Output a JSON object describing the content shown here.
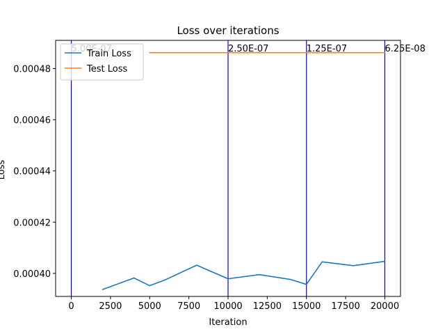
{
  "chart_data": {
    "type": "line",
    "title": "Loss over iterations",
    "xlabel": "Iteration",
    "ylabel": "Loss",
    "xlim": [
      -1000,
      21000
    ],
    "ylim": [
      0.000391,
      0.000491
    ],
    "x_ticks": [
      0,
      2500,
      5000,
      7500,
      10000,
      12500,
      15000,
      17500,
      20000
    ],
    "x_tick_labels": [
      "0",
      "2500",
      "5000",
      "7500",
      "10000",
      "12500",
      "15000",
      "17500",
      "20000"
    ],
    "y_ticks": [
      0.0004,
      0.00042,
      0.00044,
      0.00046,
      0.00048
    ],
    "y_tick_labels": [
      "0.00040",
      "0.00042",
      "0.00044",
      "0.00046",
      "0.00048"
    ],
    "grid": false,
    "legend": "top-left",
    "series": [
      {
        "name": "Train Loss",
        "color": "#1f77b4",
        "x": [
          2000,
          4000,
          5000,
          6000,
          8000,
          10000,
          12000,
          14000,
          15000,
          16000,
          18000,
          20000
        ],
        "y": [
          0.0003937,
          0.0003982,
          0.0003952,
          0.0003975,
          0.0004032,
          0.0003979,
          0.0003995,
          0.0003976,
          0.0003957,
          0.0004045,
          0.000403,
          0.0004047
        ]
      },
      {
        "name": "Test Loss",
        "color": "#ff7f0e",
        "x": [
          5000,
          10000,
          15000,
          20000
        ],
        "y": [
          0.0004862,
          0.0004862,
          0.0004862,
          0.0004862
        ]
      }
    ],
    "vlines": {
      "color": "#0000ff",
      "items": [
        {
          "x": 0,
          "label": "5.00E-07"
        },
        {
          "x": 10000,
          "label": "2.50E-07"
        },
        {
          "x": 15000,
          "label": "1.25E-07"
        },
        {
          "x": 20000,
          "label": "6.25E-08"
        }
      ]
    }
  }
}
